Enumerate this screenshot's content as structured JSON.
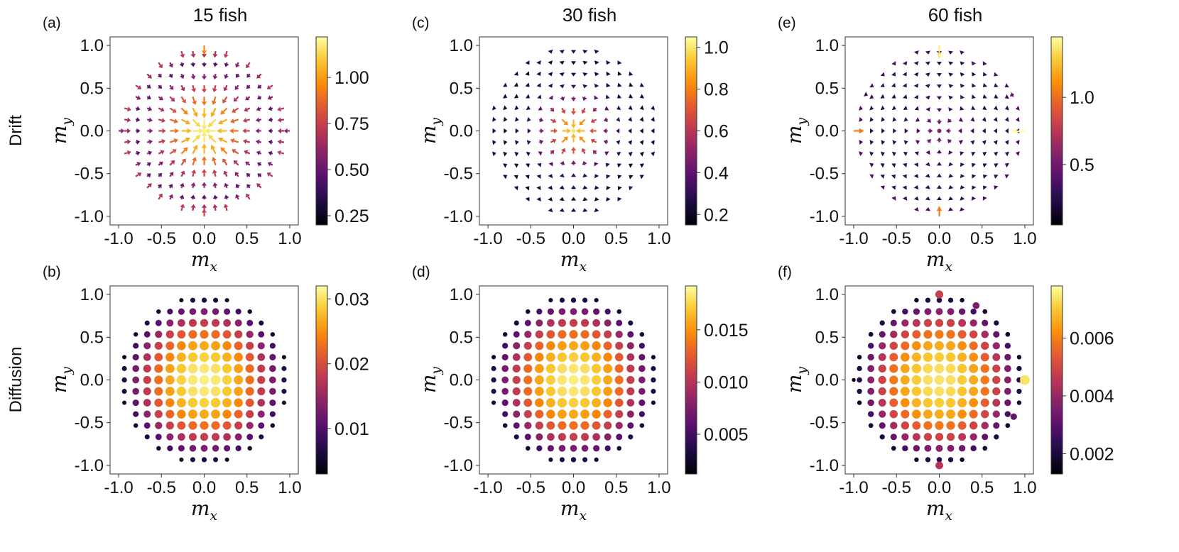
{
  "figure": {
    "columns": [
      {
        "title": "15 fish"
      },
      {
        "title": "30 fish"
      },
      {
        "title": "60 fish"
      }
    ],
    "rows": [
      {
        "label": "Drift"
      },
      {
        "label": "Diffusion"
      }
    ]
  },
  "chart_data": [
    {
      "id": "a",
      "panel_label": "(a)",
      "type": "quiver",
      "row": 0,
      "col": 0,
      "n_fish": 15,
      "xlabel": {
        "main": "m",
        "sub": "x"
      },
      "ylabel": {
        "main": "m",
        "sub": "y"
      },
      "xlim": [
        -1.1,
        1.1
      ],
      "ylim": [
        -1.1,
        1.1
      ],
      "xticks": [
        -1.0,
        -0.5,
        0.0,
        0.5,
        1.0
      ],
      "yticks": [
        -1.0,
        -0.5,
        0.0,
        0.5,
        1.0
      ],
      "grid_step": 0.1333,
      "grid_radius": 1.0,
      "colorbar": {
        "min": 0.2,
        "max": 1.22,
        "ticks": [
          0.25,
          0.5,
          0.75,
          1.0
        ],
        "tick_labels": [
          "0.25",
          "0.50",
          "0.75",
          "1.00"
        ],
        "colormap": "inferno"
      },
      "field": {
        "model": "radial-drift",
        "peak": 1.2,
        "falloff": 2.2,
        "floor": 0.22,
        "edge_boost": 0.45,
        "edge_start": 0.82
      },
      "outliers": [
        {
          "x": 0.0,
          "y": 1.0,
          "magnitude": 0.95
        },
        {
          "x": 0.0,
          "y": -1.0,
          "magnitude": 0.75
        },
        {
          "x": -1.0,
          "y": 0.0,
          "magnitude": 0.6
        },
        {
          "x": 1.0,
          "y": 0.0,
          "magnitude": 0.6
        }
      ]
    },
    {
      "id": "c",
      "panel_label": "(c)",
      "type": "quiver",
      "row": 0,
      "col": 1,
      "n_fish": 30,
      "xlabel": {
        "main": "m",
        "sub": "x"
      },
      "ylabel": {
        "main": "m",
        "sub": "y"
      },
      "xlim": [
        -1.1,
        1.1
      ],
      "ylim": [
        -1.1,
        1.1
      ],
      "xticks": [
        -1.0,
        -0.5,
        0.0,
        0.5,
        1.0
      ],
      "yticks": [
        -1.0,
        -0.5,
        0.0,
        0.5,
        1.0
      ],
      "grid_step": 0.1333,
      "grid_radius": 1.0,
      "colorbar": {
        "min": 0.15,
        "max": 1.05,
        "ticks": [
          0.2,
          0.4,
          0.6,
          0.8,
          1.0
        ],
        "tick_labels": [
          "0.2",
          "0.4",
          "0.6",
          "0.8",
          "1.0"
        ],
        "colormap": "inferno"
      },
      "field": {
        "model": "radial-drift",
        "peak": 1.0,
        "falloff": 7.0,
        "floor": 0.22,
        "edge_boost": 0.06,
        "edge_start": 0.85
      },
      "outliers": []
    },
    {
      "id": "e",
      "panel_label": "(e)",
      "type": "quiver",
      "row": 0,
      "col": 2,
      "n_fish": 60,
      "xlabel": {
        "main": "m",
        "sub": "x"
      },
      "ylabel": {
        "main": "m",
        "sub": "y"
      },
      "xlim": [
        -1.1,
        1.1
      ],
      "ylim": [
        -1.1,
        1.1
      ],
      "xticks": [
        -1.0,
        -0.5,
        0.0,
        0.5,
        1.0
      ],
      "yticks": [
        -1.0,
        -0.5,
        0.0,
        0.5,
        1.0
      ],
      "grid_step": 0.1333,
      "grid_radius": 1.0,
      "colorbar": {
        "min": 0.05,
        "max": 1.45,
        "ticks": [
          0.5,
          1.0
        ],
        "tick_labels": [
          "0.5",
          "1.0"
        ],
        "colormap": "inferno"
      },
      "field": {
        "model": "radial-drift",
        "peak": 0.55,
        "falloff": 12.0,
        "floor": 0.28,
        "edge_boost": 0.1,
        "edge_start": 0.8
      },
      "outliers": [
        {
          "x": 0.0,
          "y": 1.0,
          "magnitude": 1.4
        },
        {
          "x": 1.0,
          "y": 0.0,
          "magnitude": 1.45,
          "dir_y": -0.05
        },
        {
          "x": -1.0,
          "y": 0.0,
          "magnitude": 1.05
        },
        {
          "x": 0.0,
          "y": -1.0,
          "magnitude": 1.05
        },
        {
          "x": 0.87,
          "y": 0.43,
          "magnitude": 0.45
        },
        {
          "x": -0.87,
          "y": 0.43,
          "magnitude": 0.35
        }
      ]
    },
    {
      "id": "b",
      "panel_label": "(b)",
      "type": "scatter",
      "row": 1,
      "col": 0,
      "n_fish": 15,
      "xlabel": {
        "main": "m",
        "sub": "x"
      },
      "ylabel": {
        "main": "m",
        "sub": "y"
      },
      "xlim": [
        -1.1,
        1.1
      ],
      "ylim": [
        -1.1,
        1.1
      ],
      "xticks": [
        -1.0,
        -0.5,
        0.0,
        0.5,
        1.0
      ],
      "yticks": [
        -1.0,
        -0.5,
        0.0,
        0.5,
        1.0
      ],
      "grid_step": 0.1333,
      "grid_radius": 1.0,
      "colorbar": {
        "min": 0.003,
        "max": 0.032,
        "ticks": [
          0.01,
          0.02,
          0.03
        ],
        "tick_labels": [
          "0.01",
          "0.02",
          "0.03"
        ],
        "colormap": "inferno"
      },
      "field": {
        "model": "radial-diffusion",
        "peak": 0.031,
        "floor": 0.003,
        "exponent": 2.0
      },
      "outliers": []
    },
    {
      "id": "d",
      "panel_label": "(d)",
      "type": "scatter",
      "row": 1,
      "col": 1,
      "n_fish": 30,
      "xlabel": {
        "main": "m",
        "sub": "x"
      },
      "ylabel": {
        "main": "m",
        "sub": "y"
      },
      "xlim": [
        -1.1,
        1.1
      ],
      "ylim": [
        -1.1,
        1.1
      ],
      "xticks": [
        -1.0,
        -0.5,
        0.0,
        0.5,
        1.0
      ],
      "yticks": [
        -1.0,
        -0.5,
        0.0,
        0.5,
        1.0
      ],
      "grid_step": 0.1333,
      "grid_radius": 1.0,
      "colorbar": {
        "min": 0.0012,
        "max": 0.0192,
        "ticks": [
          0.005,
          0.01,
          0.015
        ],
        "tick_labels": [
          "0.005",
          "0.010",
          "0.015"
        ],
        "colormap": "inferno"
      },
      "field": {
        "model": "radial-diffusion",
        "peak": 0.0185,
        "floor": 0.0013,
        "exponent": 2.0
      },
      "outliers": []
    },
    {
      "id": "f",
      "panel_label": "(f)",
      "type": "scatter",
      "row": 1,
      "col": 2,
      "n_fish": 60,
      "xlabel": {
        "main": "m",
        "sub": "x"
      },
      "ylabel": {
        "main": "m",
        "sub": "y"
      },
      "xlim": [
        -1.1,
        1.1
      ],
      "ylim": [
        -1.1,
        1.1
      ],
      "xticks": [
        -1.0,
        -0.5,
        0.0,
        0.5,
        1.0
      ],
      "yticks": [
        -1.0,
        -0.5,
        0.0,
        0.5,
        1.0
      ],
      "grid_step": 0.1333,
      "grid_radius": 1.0,
      "colorbar": {
        "min": 0.0013,
        "max": 0.0078,
        "ticks": [
          0.002,
          0.004,
          0.006
        ],
        "tick_labels": [
          "0.002",
          "0.004",
          "0.006"
        ],
        "colormap": "inferno"
      },
      "field": {
        "model": "radial-diffusion",
        "peak": 0.0074,
        "floor": 0.0014,
        "exponent": 2.2
      },
      "outliers": [
        {
          "x": 1.0,
          "y": 0.0,
          "value": 0.0074
        },
        {
          "x": 0.0,
          "y": 1.0,
          "value": 0.0048
        },
        {
          "x": 0.0,
          "y": -1.0,
          "value": 0.0045
        },
        {
          "x": -1.0,
          "y": 0.0,
          "value": 0.0015
        },
        {
          "x": 0.43,
          "y": 0.87,
          "value": 0.0035
        },
        {
          "x": 0.87,
          "y": -0.43,
          "value": 0.0032
        }
      ]
    }
  ]
}
